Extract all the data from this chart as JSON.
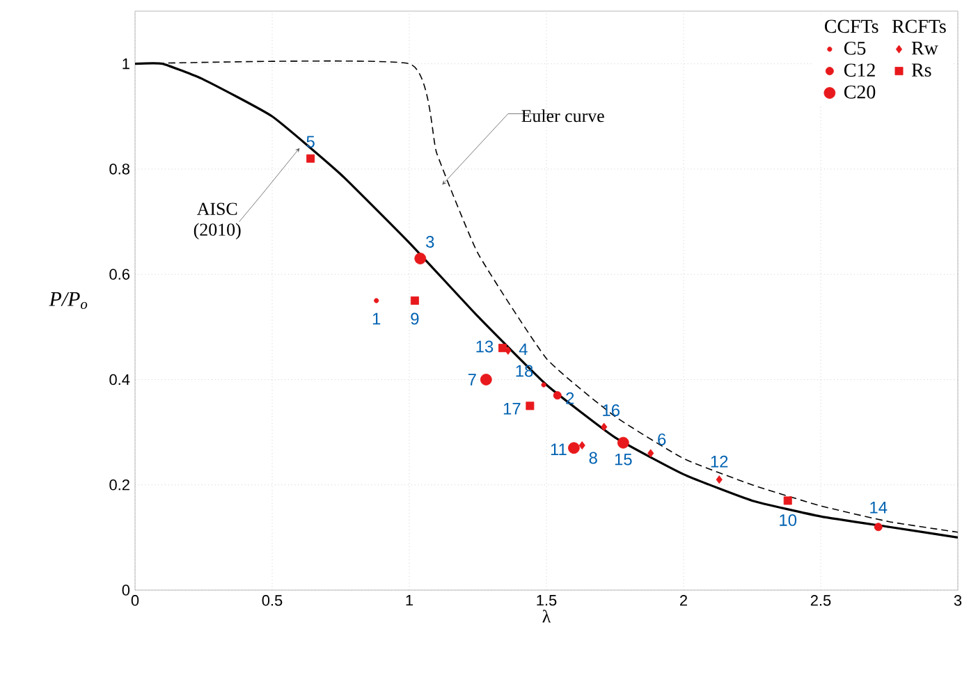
{
  "chart_data": {
    "type": "scatter",
    "xlabel": "λ",
    "ylabel": "P/P$_{o}$",
    "xlim": [
      0,
      3
    ],
    "ylim": [
      0,
      1.1
    ],
    "xticks": [
      0,
      0.5,
      1,
      1.5,
      2,
      2.5,
      3
    ],
    "yticks": [
      0,
      0.2,
      0.4,
      0.6,
      0.8,
      1
    ],
    "grid": true,
    "legend": "top right",
    "series": [
      {
        "type": "line",
        "color": "#000000",
        "line_style": "solid",
        "marker": "none",
        "x": [
          0,
          0.1,
          0.25,
          0.5,
          0.75,
          1,
          1.25,
          1.5,
          1.75,
          2,
          2.25,
          2.5,
          2.75,
          3
        ],
        "values": [
          1,
          1,
          0.97,
          0.9,
          0.79,
          0.66,
          0.52,
          0.39,
          0.29,
          0.22,
          0.17,
          0.14,
          0.12,
          0.1
        ]
      },
      {
        "type": "line",
        "color": "#000000",
        "line_style": "dashed",
        "marker": "none",
        "x": [
          0,
          1,
          1.1,
          1.25,
          1.5,
          1.75,
          2,
          2.25,
          2.5,
          2.75,
          3
        ],
        "values": [
          1,
          1,
          0.83,
          0.64,
          0.44,
          0.33,
          0.25,
          0.2,
          0.16,
          0.13,
          0.11
        ]
      },
      {
        "name": "C5",
        "color": "#e8191c",
        "marker": "circle",
        "x": [
          0.88,
          1.49
        ],
        "values": [
          0.55,
          0.39
        ]
      },
      {
        "name": "C12",
        "color": "#e8191c",
        "marker": "circle",
        "x": [
          1.54,
          2.71
        ],
        "values": [
          0.37,
          0.12
        ]
      },
      {
        "name": "C20",
        "color": "#e8191c",
        "marker": "circle",
        "x": [
          1.04,
          1.28,
          1.6,
          1.78
        ],
        "values": [
          0.63,
          0.4,
          0.27,
          0.28
        ]
      },
      {
        "name": "Rw",
        "color": "#e8191c",
        "marker": "diamond",
        "x": [
          1.36,
          1.63,
          1.71,
          1.88,
          2.13
        ],
        "values": [
          0.455,
          0.275,
          0.31,
          0.26,
          0.21
        ]
      },
      {
        "name": "Rs",
        "color": "#e8191c",
        "marker": "square",
        "x": [
          0.64,
          1.02,
          1.34,
          1.44,
          2.38
        ],
        "values": [
          0.82,
          0.55,
          0.46,
          0.35,
          0.17
        ]
      }
    ],
    "annotations": [
      "CCFTs",
      "RCFTs",
      {
        "text": "AISC (2010)",
        "x": 0.6,
        "y": 0.84
      },
      {
        "text": "Euler curve",
        "x": 1.12,
        "y": 0.77
      },
      {
        "text": "1",
        "x": 0.88,
        "y": 0.55
      },
      {
        "text": "2",
        "x": 1.54,
        "y": 0.37
      },
      {
        "text": "3",
        "x": 1.04,
        "y": 0.63
      },
      {
        "text": "4",
        "x": 1.36,
        "y": 0.455
      },
      {
        "text": "5",
        "x": 0.64,
        "y": 0.82
      },
      {
        "text": "6",
        "x": 1.88,
        "y": 0.26
      },
      {
        "text": "7",
        "x": 1.28,
        "y": 0.4
      },
      {
        "text": "8",
        "x": 1.63,
        "y": 0.275
      },
      {
        "text": "9",
        "x": 1.02,
        "y": 0.55
      },
      {
        "text": "10",
        "x": 2.38,
        "y": 0.17
      },
      {
        "text": "11",
        "x": 1.6,
        "y": 0.27
      },
      {
        "text": "12",
        "x": 2.13,
        "y": 0.21
      },
      {
        "text": "13",
        "x": 1.34,
        "y": 0.46
      },
      {
        "text": "14",
        "x": 2.71,
        "y": 0.12
      },
      {
        "text": "15",
        "x": 1.78,
        "y": 0.28
      },
      {
        "text": "16",
        "x": 1.71,
        "y": 0.31
      },
      {
        "text": "17",
        "x": 1.44,
        "y": 0.35
      },
      {
        "text": "18",
        "x": 1.49,
        "y": 0.39
      }
    ]
  }
}
